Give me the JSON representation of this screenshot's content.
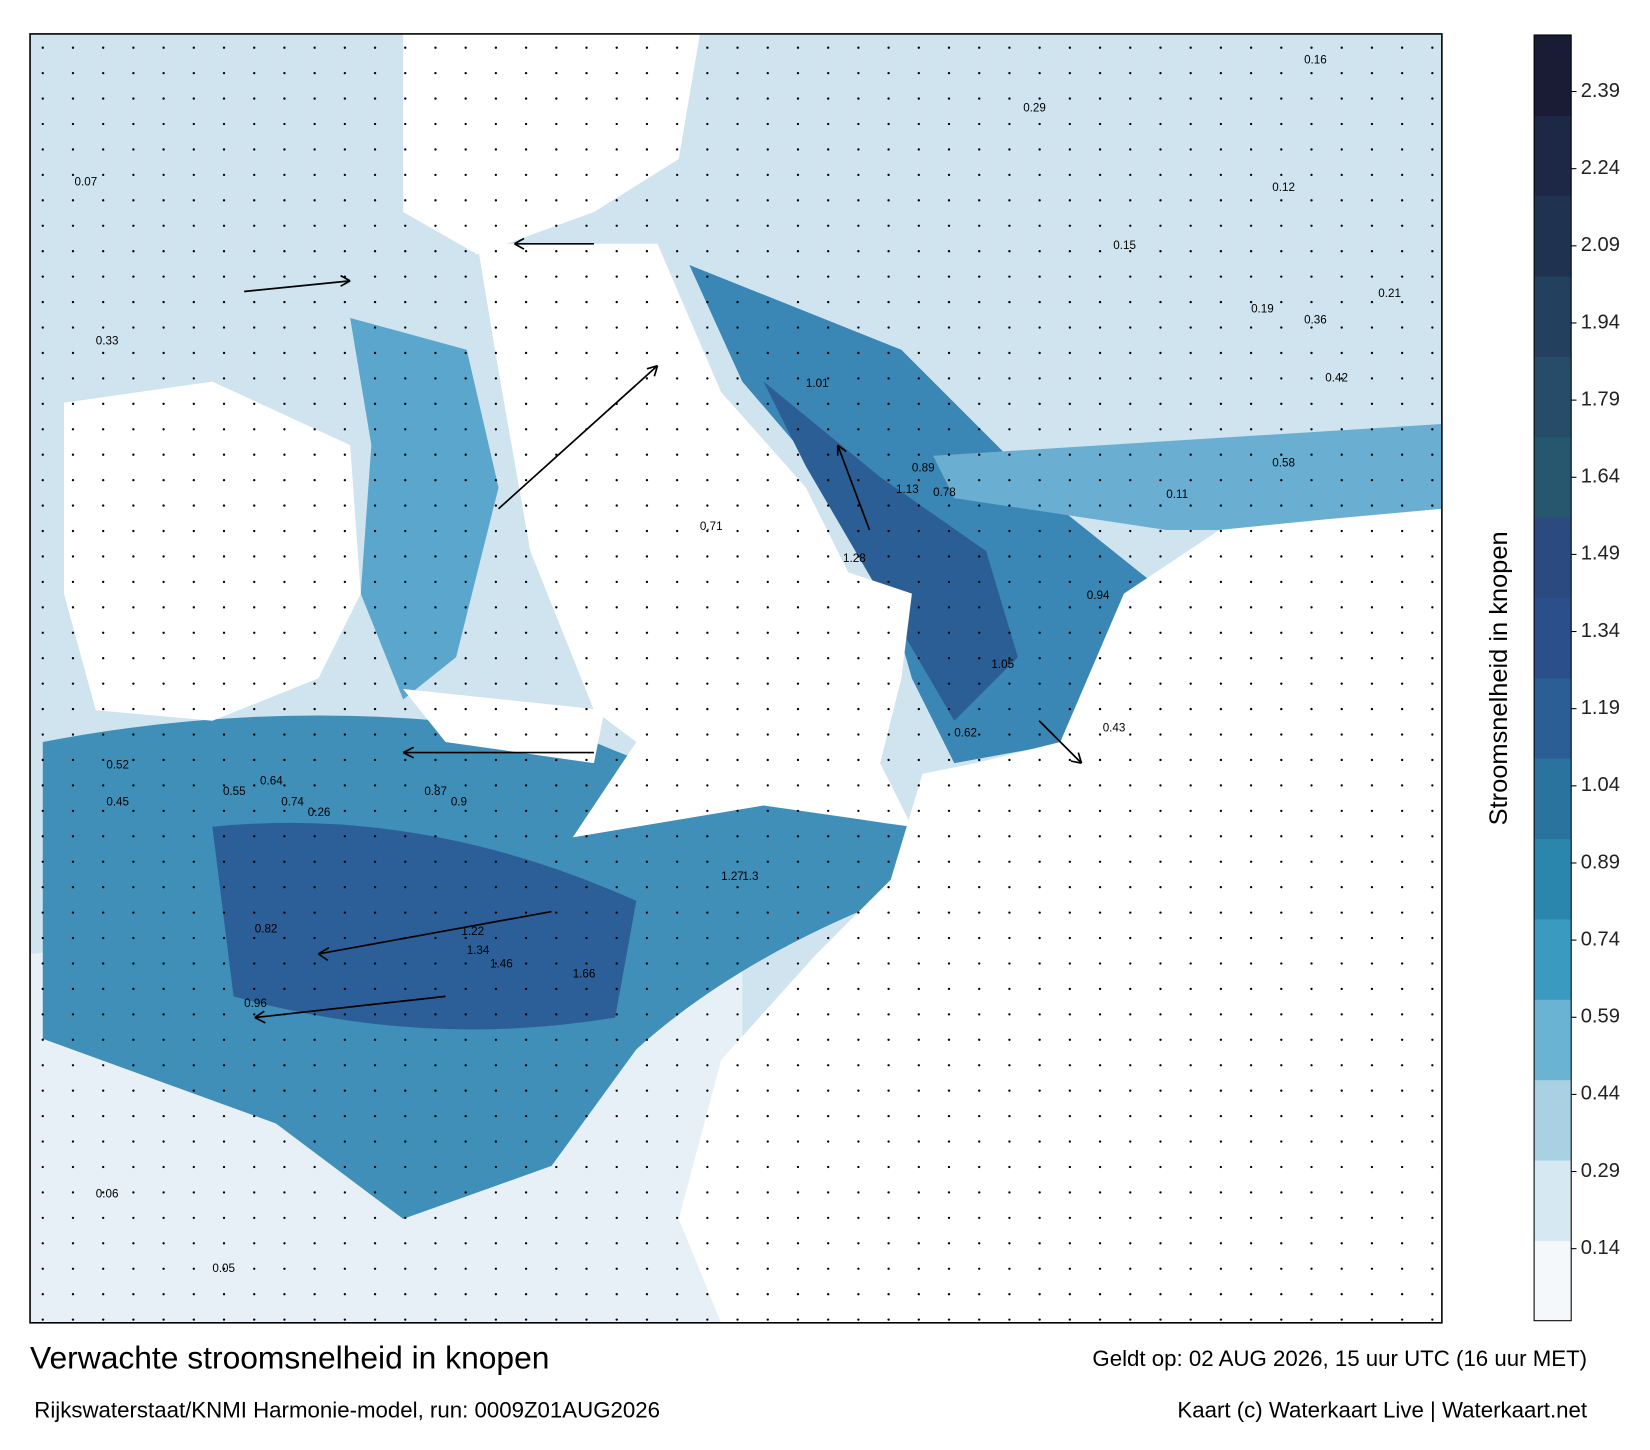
{
  "title": "Verwachte stroomsnelheid in knopen",
  "valid": "Geldt op: 02 AUG 2026, 15 uur UTC (16 uur MET)",
  "source": "Rijkswaterstaat/KNMI Harmonie-model, run: 0009Z01AUG2026",
  "credit": "Kaart (c) Waterkaart Live | Waterkaart.net",
  "colorbar": {
    "label": "Stroomsnelheid in knopen",
    "lim": [
      0,
      2.5
    ],
    "ticks": [
      0.14,
      0.29,
      0.44,
      0.59,
      0.74,
      0.89,
      1.04,
      1.19,
      1.34,
      1.49,
      1.64,
      1.79,
      1.94,
      2.09,
      2.24,
      2.39
    ],
    "colors": [
      "#f4f8fb",
      "#d6e8f1",
      "#a9d0e3",
      "#6bb3d2",
      "#3a9ac0",
      "#2b86ae",
      "#2a739f",
      "#2b5e95",
      "#2b4f8a",
      "#2a4a80",
      "#26576f",
      "#264c6a",
      "#23405f",
      "#1f3350",
      "#1c2845",
      "#1a1c36"
    ]
  },
  "map_labels": [
    "0.07",
    "0.33",
    "0.52",
    "1.01",
    "0.29",
    "0.15",
    "0.12",
    "0.89",
    "1.13",
    "0.78",
    "0.94",
    "1.05",
    "0.87",
    "0.9",
    "1.22",
    "1.34",
    "1.46",
    "1.66",
    "0.62",
    "0.55",
    "0.45",
    "0.64",
    "0.74",
    "0.82",
    "0.96",
    "1.27",
    "1.3",
    "0.43",
    "0.16",
    "0.21",
    "0.11",
    "0.05",
    "0.06",
    "0.19",
    "0.36",
    "0.42",
    "0.58",
    "0.71",
    "1.28",
    "0.26"
  ]
}
